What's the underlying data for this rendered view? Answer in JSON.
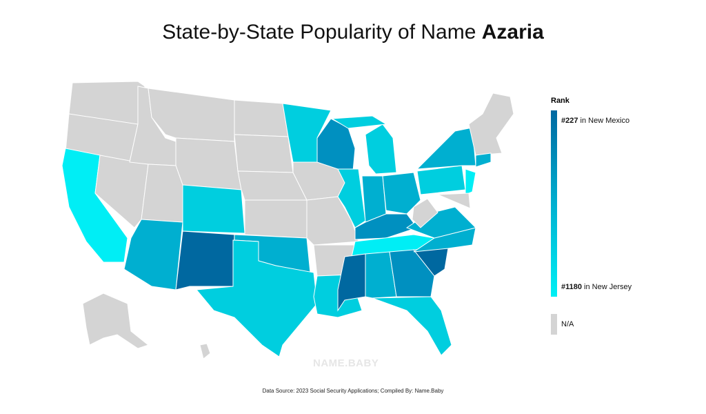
{
  "title": {
    "text": "State-by-State Popularity of Name",
    "name": "Azaria"
  },
  "legend": {
    "title": "Rank",
    "top": {
      "rank": "#227",
      "place": "in New Mexico"
    },
    "bottom": {
      "rank": "#1180",
      "place": "in New Jersey"
    },
    "na": "N/A"
  },
  "watermark": "NAME.BABY",
  "footer": "Data Source: 2023 Social Security Applications; Compiled By: Name.Baby"
}
